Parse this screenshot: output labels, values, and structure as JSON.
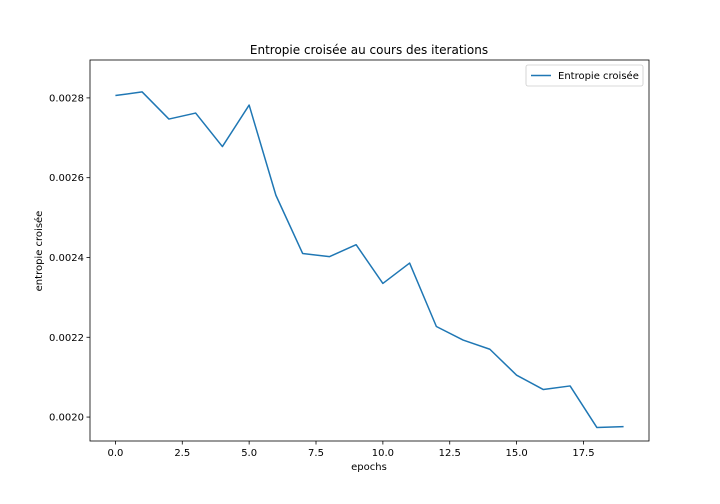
{
  "chart_data": {
    "type": "line",
    "title": "Entropie croisée au cours des iterations",
    "xlabel": "epochs",
    "ylabel": "entropie croisée",
    "xlim": [
      -0.95,
      19.95
    ],
    "ylim": [
      0.00194,
      0.002895
    ],
    "xticks": [
      0.0,
      2.5,
      5.0,
      7.5,
      10.0,
      12.5,
      15.0,
      17.5
    ],
    "xtick_labels": [
      "0.0",
      "2.5",
      "5.0",
      "7.5",
      "10.0",
      "12.5",
      "15.0",
      "17.5"
    ],
    "yticks": [
      0.002,
      0.0022,
      0.0024,
      0.0026,
      0.0028
    ],
    "ytick_labels": [
      "0.0020",
      "0.0022",
      "0.0024",
      "0.0026",
      "0.0028"
    ],
    "grid": false,
    "legend_position": "top-right",
    "series": [
      {
        "name": "Entropie croisée",
        "color": "#1f77b4",
        "x": [
          0,
          1,
          2,
          3,
          4,
          5,
          6,
          7,
          8,
          9,
          10,
          11,
          12,
          13,
          14,
          15,
          16,
          17,
          18,
          19
        ],
        "y": [
          0.002806,
          0.002815,
          0.002747,
          0.002762,
          0.002678,
          0.002782,
          0.002556,
          0.00241,
          0.002402,
          0.002432,
          0.002335,
          0.002386,
          0.002227,
          0.002193,
          0.00217,
          0.002105,
          0.002069,
          0.002078,
          0.001974,
          0.001976
        ]
      }
    ]
  }
}
